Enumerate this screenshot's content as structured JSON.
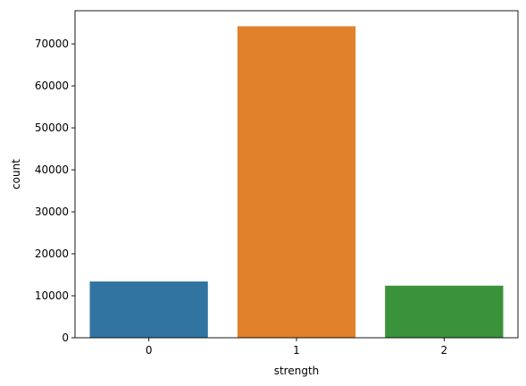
{
  "chart_data": {
    "type": "bar",
    "title": "",
    "xlabel": "strength",
    "ylabel": "count",
    "categories": [
      "0",
      "1",
      "2"
    ],
    "values": [
      13400,
      74200,
      12400
    ],
    "colors": [
      "#3274a1",
      "#e1812c",
      "#3a923a"
    ],
    "ylim": [
      0,
      77900
    ],
    "yticks": [
      0,
      10000,
      20000,
      30000,
      40000,
      50000,
      60000,
      70000
    ],
    "grid": false,
    "legend": "none"
  }
}
